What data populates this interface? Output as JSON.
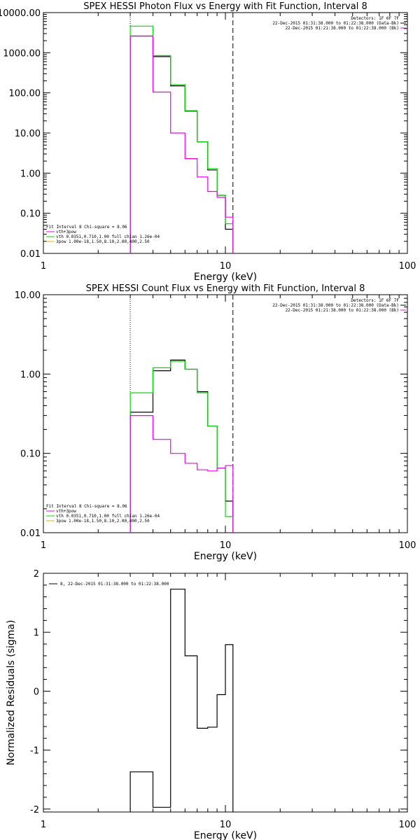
{
  "colors": {
    "data": "#000000",
    "total": "#00dd00",
    "background": "#ee00ee",
    "spl": "#e0b000",
    "frame": "#000000"
  },
  "panel1": {
    "title": "SPEX HESSI Photon Flux vs Energy with Fit Function, Interval 8",
    "xlabel": "Energy (keV)",
    "ylabel": "",
    "x_ticks": [
      "1",
      "10",
      "100"
    ],
    "y_ticks": [
      "0.01",
      "0.10",
      "1.00",
      "10.00",
      "100.00",
      "1000.00",
      "10000.00"
    ],
    "legend_tr": [
      "Detectors: 1F 6F 7F",
      "22-Dec-2015 01:31:38.000 to 01:22:38.000 (Data-Bk)",
      "22-Dec-2015 01:21:38.000 to 01:22:38.000 (Bk)"
    ],
    "legend_bl": [
      "Fit Interval 8   Chi-square = 8.06",
      "vth+3pow",
      "vth 0.0351,0.710,1.00  full chian 1.26e-04",
      "3pow 1.00e-18,1.50,8.10,2.00,400,2.50"
    ]
  },
  "panel2": {
    "title": "SPEX HESSI Count Flux vs Energy with Fit Function, Interval 8",
    "xlabel": "Energy (keV)",
    "ylabel": "",
    "x_ticks": [
      "1",
      "10",
      "100"
    ],
    "y_ticks": [
      "0.01",
      "0.10",
      "1.00",
      "10.00"
    ],
    "legend_tr": [
      "Detectors: 1F 6F 7F",
      "22-Dec-2015 01:31:38.000 to 01:22:38.000 (Data-Bk)",
      "22-Dec-2015 01:21:38.000 to 01:22:38.000 (Bk)"
    ],
    "legend_bl": [
      "Fit Interval 8   Chi-square = 8.06",
      "vth+3pow",
      "vth 0.0351,0.710,1.00  full chian 1.26e-04",
      "3pow 1.00e-18,1.50,8.10,2.00,400,2.50"
    ]
  },
  "panel3": {
    "title": "",
    "xlabel": "Energy (keV)",
    "ylabel": "Normalized Residuals (sigma)",
    "x_ticks": [
      "1",
      "10",
      "100"
    ],
    "y_ticks": [
      "-2",
      "-1",
      "0",
      "1",
      "2"
    ],
    "legend_tl": "8, 22-Dec-2015 01:31:38.000 to 01:22:38.000"
  },
  "chart_data": [
    {
      "type": "line",
      "step": true,
      "title": "SPEX HESSI Photon Flux vs Energy with Fit Function, Interval 8",
      "xlabel": "Energy (keV)",
      "xscale": "log",
      "yscale": "log",
      "xlim": [
        1,
        100
      ],
      "ylim": [
        0.01,
        10000
      ],
      "bin_edges": [
        3,
        4,
        5,
        6,
        7,
        8,
        9,
        10,
        11
      ],
      "vlines": [
        {
          "x": 3,
          "style": "dotted"
        },
        {
          "x": 11,
          "style": "dashed"
        }
      ],
      "series": [
        {
          "role": "data",
          "color": "#000000",
          "values": [
            2600,
            800,
            150,
            35,
            6,
            1.2,
            0.28,
            0.04
          ]
        },
        {
          "role": "fit",
          "color": "#00dd00",
          "values": [
            4600,
            850,
            160,
            36,
            6,
            1.3,
            0.28,
            0.055
          ]
        },
        {
          "role": "background",
          "color": "#ee00ee",
          "values": [
            2600,
            105,
            10,
            2.3,
            0.8,
            0.35,
            0.25,
            0.08
          ]
        }
      ]
    },
    {
      "type": "line",
      "step": true,
      "title": "SPEX HESSI Count Flux vs Energy with Fit Function, Interval 8",
      "xlabel": "Energy (keV)",
      "xscale": "log",
      "yscale": "log",
      "xlim": [
        1,
        100
      ],
      "ylim": [
        0.01,
        10
      ],
      "bin_edges": [
        3,
        4,
        5,
        6,
        7,
        8,
        9,
        10,
        11
      ],
      "vlines": [
        {
          "x": 3,
          "style": "dotted"
        },
        {
          "x": 11,
          "style": "dashed"
        }
      ],
      "series": [
        {
          "role": "data",
          "color": "#000000",
          "values": [
            0.33,
            1.1,
            1.5,
            1.15,
            0.6,
            0.22,
            0.065,
            0.025
          ]
        },
        {
          "role": "fit",
          "color": "#00dd00",
          "values": [
            0.58,
            1.2,
            1.45,
            1.15,
            0.58,
            0.22,
            0.065,
            0.016
          ]
        },
        {
          "role": "background",
          "color": "#ee00ee",
          "values": [
            0.3,
            0.15,
            0.1,
            0.075,
            0.062,
            0.06,
            0.065,
            0.07
          ]
        }
      ]
    },
    {
      "type": "line",
      "step": true,
      "title": "",
      "xlabel": "Energy (keV)",
      "ylabel": "Normalized Residuals (sigma)",
      "xscale": "log",
      "yscale": "linear",
      "xlim": [
        1,
        100
      ],
      "ylim": [
        -2.05,
        2.0
      ],
      "bin_edges": [
        3,
        4,
        5,
        6,
        7,
        8,
        9,
        10,
        11
      ],
      "series": [
        {
          "name": "8, 22-Dec-2015 01:31:38.000 to 01:22:38.000",
          "color": "#000000",
          "values": [
            -1.37,
            -1.97,
            1.73,
            0.6,
            -0.63,
            -0.61,
            -0.06,
            0.79
          ]
        }
      ]
    }
  ]
}
